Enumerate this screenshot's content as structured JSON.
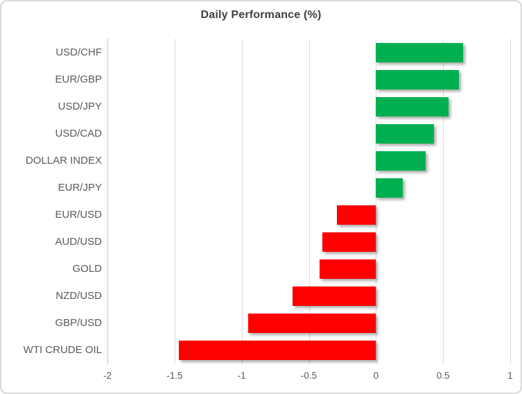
{
  "chart_data": {
    "type": "bar",
    "orientation": "horizontal",
    "title": "Daily Performance (%)",
    "categories": [
      "USD/CHF",
      "EUR/GBP",
      "USD/JPY",
      "USD/CAD",
      "DOLLAR INDEX",
      "EUR/JPY",
      "EUR/USD",
      "AUD/USD",
      "GOLD",
      "NZD/USD",
      "GBP/USD",
      "WTI CRUDE OIL"
    ],
    "values": [
      0.65,
      0.62,
      0.54,
      0.43,
      0.37,
      0.2,
      -0.29,
      -0.4,
      -0.42,
      -0.62,
      -0.95,
      -1.47
    ],
    "xlabel": "",
    "ylabel": "",
    "xlim": [
      -2,
      1
    ],
    "x_ticks": [
      -2,
      -1.5,
      -1,
      -0.5,
      0,
      0.5,
      1
    ],
    "x_tick_labels": [
      "-2",
      "-1.5",
      "-1",
      "-0.5",
      "0",
      "0.5",
      "1"
    ],
    "grid": true,
    "legend": false,
    "colors": {
      "positive": "#00B050",
      "negative": "#FF0000",
      "gridline": "#D9D9D9",
      "label_text": "#595959",
      "title_text": "#404040"
    }
  }
}
